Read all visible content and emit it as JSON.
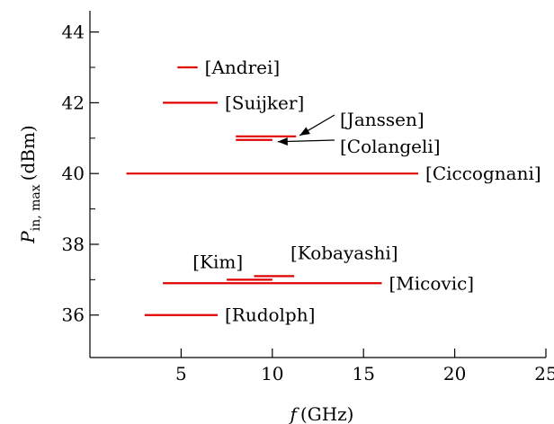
{
  "chart_data": {
    "type": "range-bar",
    "xlabel_var": "f",
    "xlabel_unit": "(GHz)",
    "ylabel_var": "P",
    "ylabel_sub": "in, max",
    "ylabel_unit": "(dBm)",
    "xlim": [
      0,
      25
    ],
    "ylim": [
      34.8,
      44.6
    ],
    "xticks": [
      5,
      10,
      15,
      20,
      25
    ],
    "xtick_labels": [
      "5",
      "10",
      "15",
      "20",
      "25"
    ],
    "yticks": [
      36,
      38,
      40,
      42,
      44
    ],
    "ytick_labels": [
      "36",
      "38",
      "40",
      "42",
      "44"
    ],
    "grid": false,
    "line_color": "#e00000",
    "series": [
      {
        "name": "[Andrei]",
        "x_start": 4.8,
        "x_end": 5.9,
        "y": 43.0
      },
      {
        "name": "[Suijker]",
        "x_start": 4.0,
        "x_end": 7.0,
        "y": 42.0
      },
      {
        "name": "[Janssen]",
        "x_start": 8.0,
        "x_end": 11.3,
        "y": 41.05
      },
      {
        "name": "[Colangeli]",
        "x_start": 8.0,
        "x_end": 10.0,
        "y": 40.95
      },
      {
        "name": "[Ciccognani]",
        "x_start": 2.0,
        "x_end": 18.0,
        "y": 40.0
      },
      {
        "name": "[Kobayashi]",
        "x_start": 9.0,
        "x_end": 11.2,
        "y": 37.1
      },
      {
        "name": "[Kim]",
        "x_start": 7.5,
        "x_end": 10.0,
        "y": 37.0
      },
      {
        "name": "[Micovic]",
        "x_start": 4.0,
        "x_end": 16.0,
        "y": 36.9
      },
      {
        "name": "[Rudolph]",
        "x_start": 3.0,
        "x_end": 7.0,
        "y": 36.0
      }
    ]
  }
}
